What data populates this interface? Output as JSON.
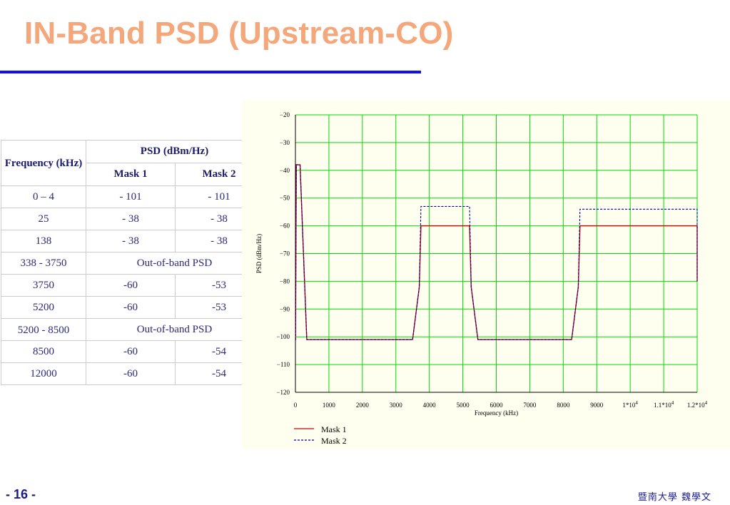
{
  "slide": {
    "title": "IN-Band PSD (Upstream-CO)",
    "page_number": "- 16 -",
    "author": "暨南大學  魏學文"
  },
  "table": {
    "header_frequency": "Frequency (kHz)",
    "header_psd": "PSD (dBm/Hz)",
    "header_mask1": "Mask 1",
    "header_mask2": "Mask 2",
    "rows": [
      {
        "freq": "0 – 4",
        "mask1": "- 101",
        "mask2": "- 101"
      },
      {
        "freq": "25",
        "mask1": "- 38",
        "mask2": "- 38"
      },
      {
        "freq": "138",
        "mask1": "- 38",
        "mask2": "- 38"
      },
      {
        "freq": "338 - 3750",
        "span": "Out-of-band PSD"
      },
      {
        "freq": "3750",
        "mask1": "-60",
        "mask2": "-53"
      },
      {
        "freq": "5200",
        "mask1": "-60",
        "mask2": "-53"
      },
      {
        "freq": "5200 - 8500",
        "span": "Out-of-band PSD"
      },
      {
        "freq": "8500",
        "mask1": "-60",
        "mask2": "-54"
      },
      {
        "freq": "12000",
        "mask1": "-60",
        "mask2": "-54"
      }
    ]
  },
  "chart_data": {
    "type": "line",
    "title": "",
    "xlabel": "Frequency (kHz)",
    "ylabel": "PSD (dBm/Hz)",
    "xlim": [
      0,
      12000
    ],
    "ylim": [
      -120,
      -20
    ],
    "x_ticks": [
      {
        "v": 0,
        "base": "0"
      },
      {
        "v": 1000,
        "base": "1000"
      },
      {
        "v": 2000,
        "base": "2000"
      },
      {
        "v": 3000,
        "base": "3000"
      },
      {
        "v": 4000,
        "base": "4000"
      },
      {
        "v": 5000,
        "base": "5000"
      },
      {
        "v": 6000,
        "base": "6000"
      },
      {
        "v": 7000,
        "base": "7000"
      },
      {
        "v": 8000,
        "base": "8000"
      },
      {
        "v": 9000,
        "base": "9000"
      },
      {
        "v": 10000,
        "base": "1*10",
        "exp": "4"
      },
      {
        "v": 11000,
        "base": "1.1*10",
        "exp": "4"
      },
      {
        "v": 12000,
        "base": "1.2*10",
        "exp": "4"
      }
    ],
    "y_ticks": [
      {
        "v": -20,
        "label": "−20"
      },
      {
        "v": -30,
        "label": "−30"
      },
      {
        "v": -40,
        "label": "−40"
      },
      {
        "v": -50,
        "label": "−50"
      },
      {
        "v": -60,
        "label": "−60"
      },
      {
        "v": -70,
        "label": "−70"
      },
      {
        "v": -80,
        "label": "−80"
      },
      {
        "v": -90,
        "label": "−90"
      },
      {
        "v": -100,
        "label": "−100"
      },
      {
        "v": -110,
        "label": "−110"
      },
      {
        "v": -120,
        "label": "−120"
      }
    ],
    "grid": true,
    "grid_color": "#00dd00",
    "legend_position": "bottom-left",
    "series": [
      {
        "name": "Mask 1",
        "color": "#cc0000",
        "dash": "solid",
        "points": [
          [
            0,
            -101
          ],
          [
            4,
            -101
          ],
          [
            25,
            -38
          ],
          [
            138,
            -38
          ],
          [
            338,
            -101
          ],
          [
            3500,
            -101
          ],
          [
            3700,
            -82
          ],
          [
            3750,
            -60
          ],
          [
            5200,
            -60
          ],
          [
            5250,
            -82
          ],
          [
            5450,
            -101
          ],
          [
            8250,
            -101
          ],
          [
            8450,
            -82
          ],
          [
            8500,
            -60
          ],
          [
            12000,
            -60
          ],
          [
            12000,
            -80
          ]
        ]
      },
      {
        "name": "Mask 2",
        "color": "#000099",
        "dash": "dashed",
        "points": [
          [
            0,
            -101
          ],
          [
            4,
            -101
          ],
          [
            25,
            -38
          ],
          [
            138,
            -38
          ],
          [
            338,
            -101
          ],
          [
            3500,
            -101
          ],
          [
            3700,
            -82
          ],
          [
            3750,
            -53
          ],
          [
            5200,
            -53
          ],
          [
            5250,
            -82
          ],
          [
            5450,
            -101
          ],
          [
            8250,
            -101
          ],
          [
            8450,
            -82
          ],
          [
            8500,
            -54
          ],
          [
            12000,
            -54
          ],
          [
            12000,
            -80
          ]
        ]
      }
    ]
  }
}
